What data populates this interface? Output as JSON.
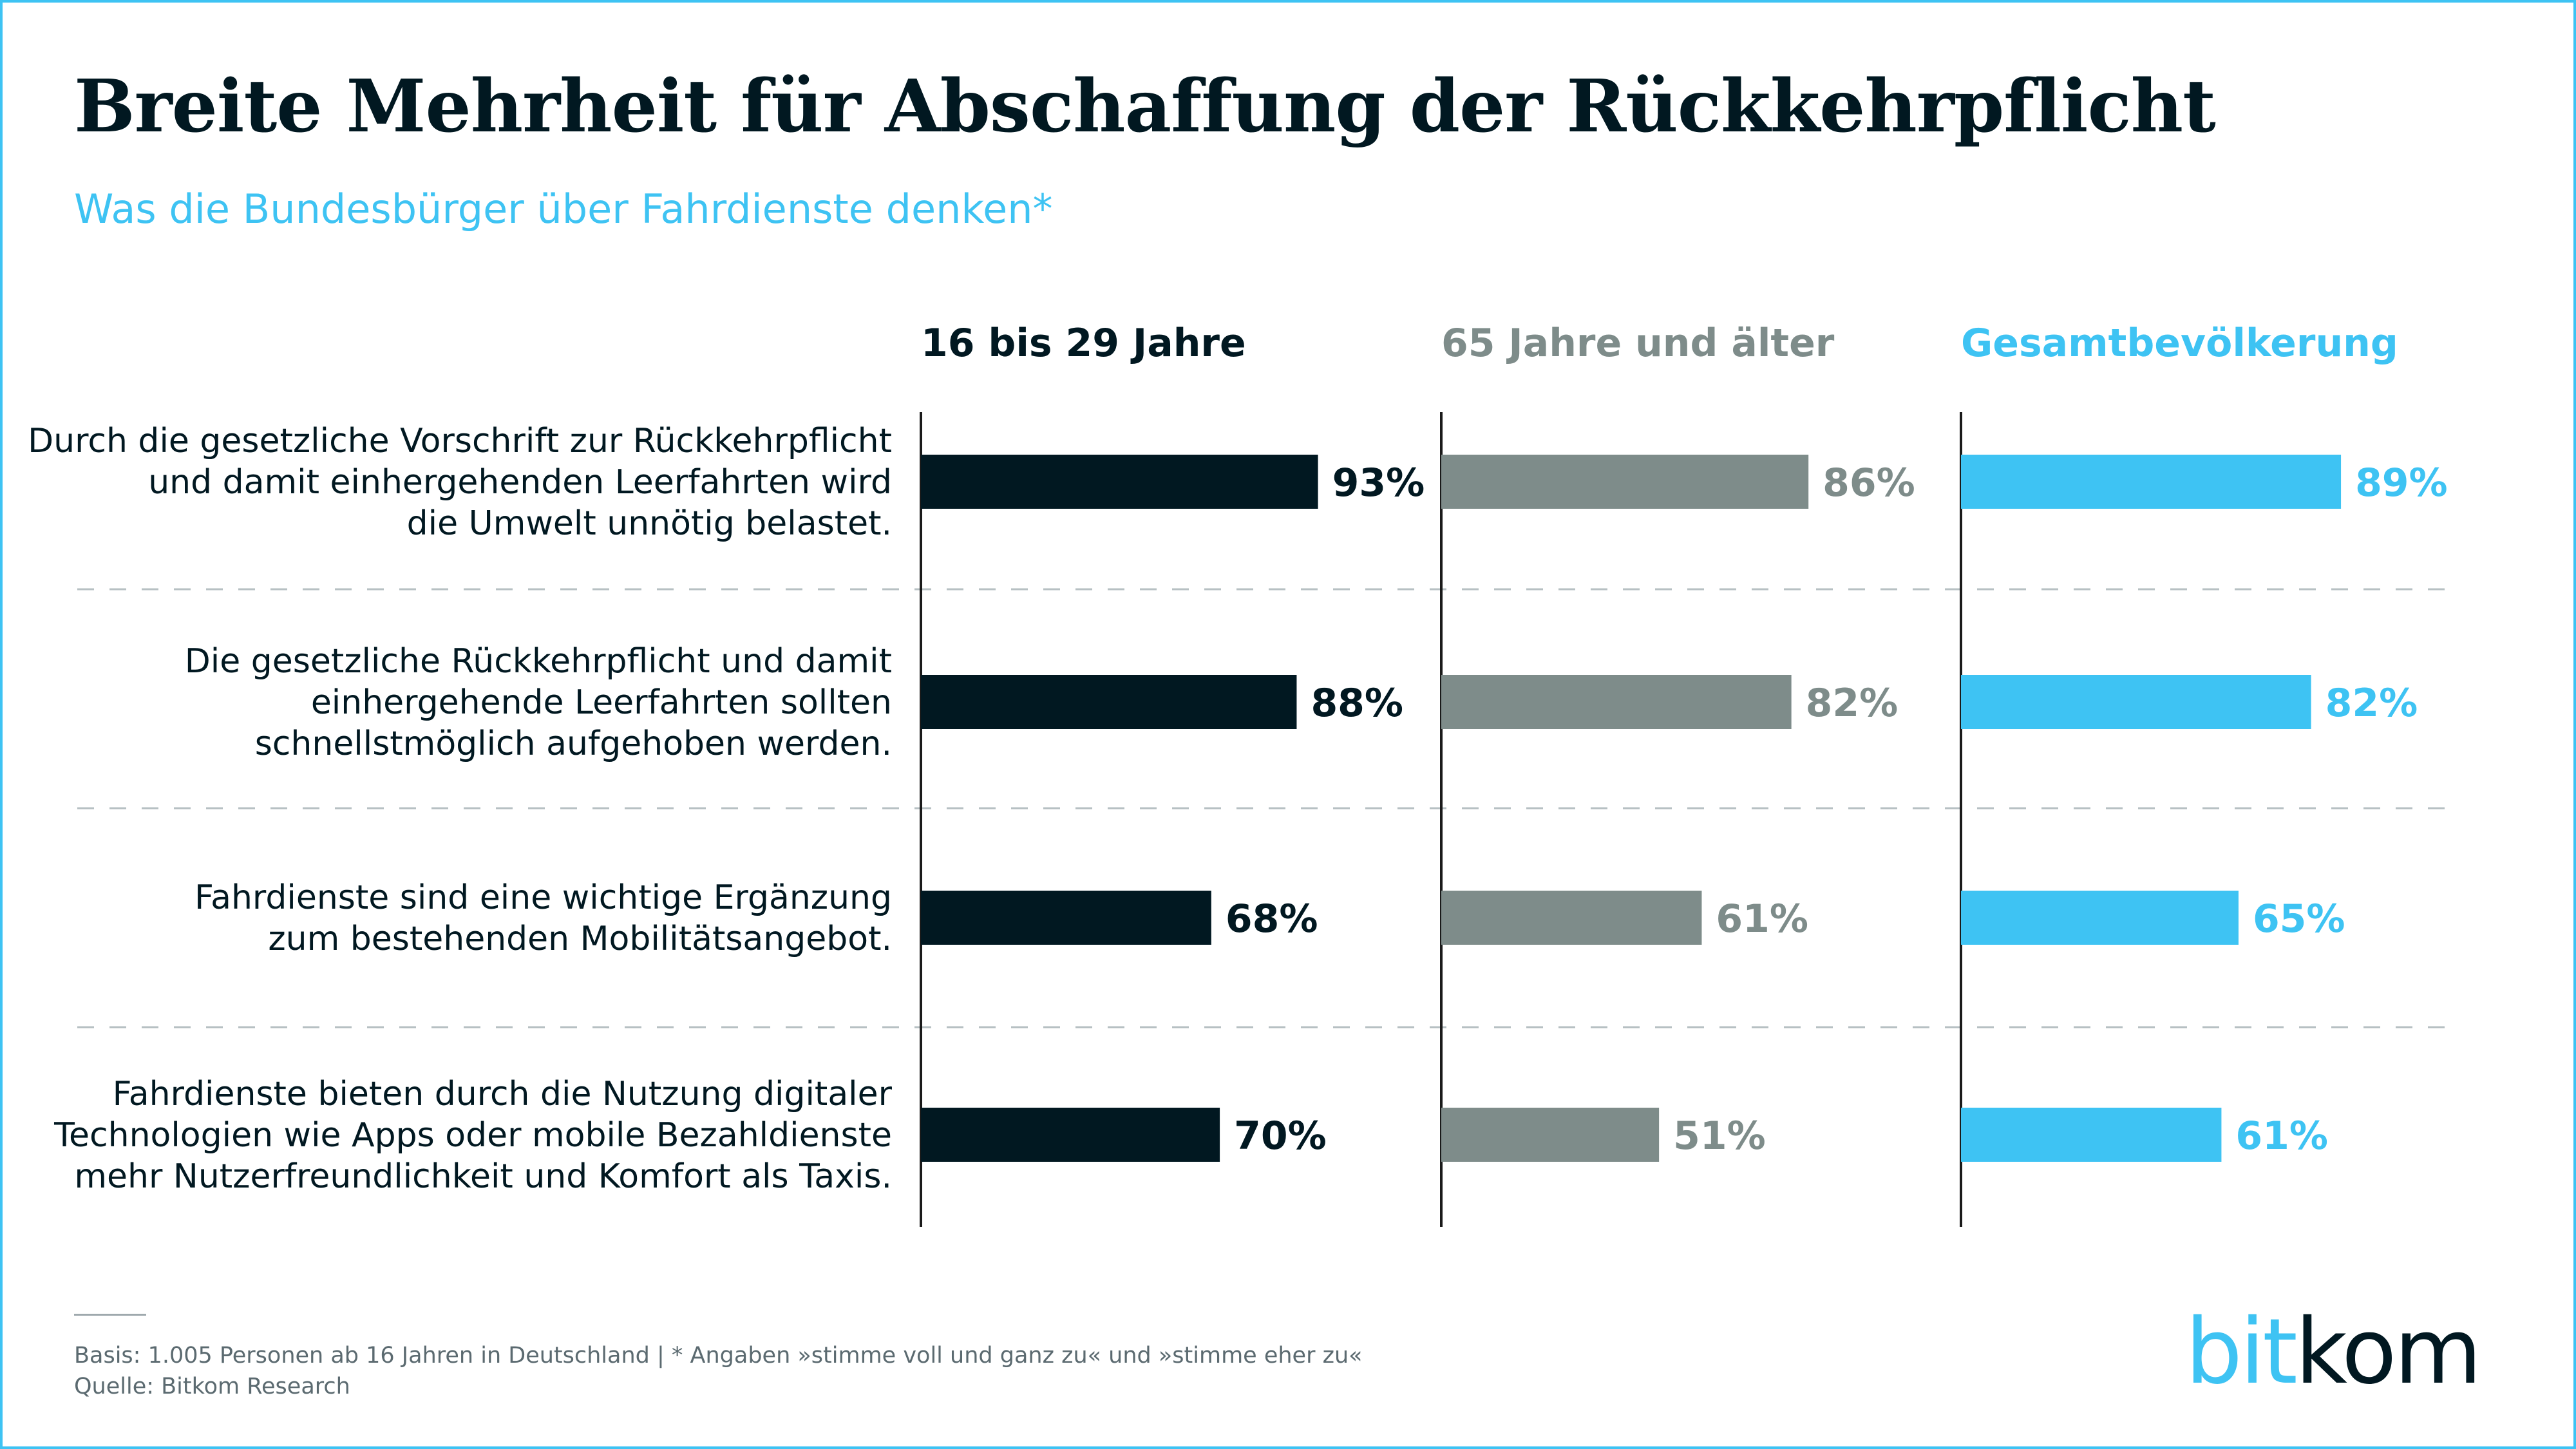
{
  "title": "Breite Mehrheit für Abschaffung der Rückkehrpflicht",
  "subtitle": "Was die Bundesbürger über Fahrdienste denken*",
  "chart_data": {
    "type": "bar",
    "orientation": "horizontal",
    "categories": [
      [
        "Durch die gesetzliche Vorschrift zur Rückkehrpflicht",
        "und damit einhergehenden Leerfahrten wird",
        "die Umwelt unnötig belastet."
      ],
      [
        "Die gesetzliche Rückkehrpflicht und damit",
        "einhergehende Leerfahrten sollten",
        "schnellstmöglich aufgehoben werden."
      ],
      [
        "Fahrdienste sind eine wichtige Ergänzung",
        "zum bestehenden Mobilitätsangebot."
      ],
      [
        "Fahrdienste bieten durch die Nutzung digitaler",
        "Technologien wie Apps oder mobile Bezahldienste",
        "mehr Nutzerfreundlichkeit und Komfort als Taxis."
      ]
    ],
    "series": [
      {
        "name": "16 bis 29 Jahre",
        "color": "#011821",
        "values": [
          93,
          88,
          68,
          70
        ],
        "labels": [
          "93%",
          "88%",
          "68%",
          "70%"
        ]
      },
      {
        "name": "65 Jahre und älter",
        "color": "#7e8c8a",
        "values": [
          86,
          82,
          61,
          51
        ],
        "labels": [
          "86%",
          "82%",
          "61%",
          "51%"
        ]
      },
      {
        "name": "Gesamtbevölkerung",
        "color": "#3ec3f3",
        "values": [
          89,
          82,
          65,
          61
        ],
        "labels": [
          "89%",
          "82%",
          "65%",
          "61%"
        ]
      }
    ],
    "unit": "%",
    "xlim": [
      0,
      100
    ],
    "grid": false,
    "legend": "column headers"
  },
  "footnote": {
    "basis": "Basis: 1.005 Personen ab 16 Jahren in Deutschland | * Angaben »stimme voll und ganz zu« und »stimme eher zu«",
    "source": "Quelle: Bitkom Research"
  },
  "logo": {
    "part1": "bit",
    "part2": "kom"
  }
}
